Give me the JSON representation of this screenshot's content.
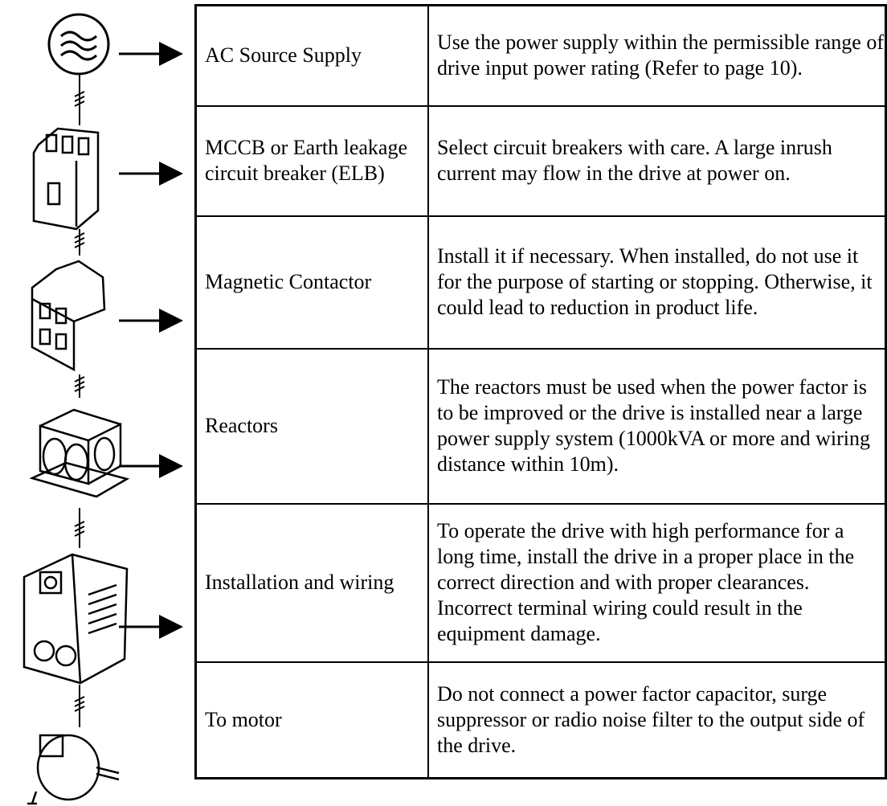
{
  "table": {
    "rows": [
      {
        "component": "AC Source Supply",
        "description": "Use the power supply within the permissible range of drive input power rating (Refer to page 10)."
      },
      {
        "component": "MCCB or Earth leakage circuit breaker (ELB)",
        "description": "Select circuit breakers with care. A large inrush current may flow in the drive at power on."
      },
      {
        "component": "Magnetic Contactor",
        "description": "Install it if necessary. When installed, do not use it for the purpose of starting or stopping. Otherwise, it could lead to reduction in product life."
      },
      {
        "component": "Reactors",
        "description": "The reactors must be used when the power factor is to be improved or the drive is installed near a large power supply system (1000kVA or more and wiring distance within 10m)."
      },
      {
        "component": "Installation and wiring",
        "description": "To operate the drive with high performance for a long time, install the drive in a proper place in the correct direction and with proper clearances. Incorrect terminal wiring could result in the equipment damage."
      },
      {
        "component": "To motor",
        "description": "Do not connect a power factor capacitor, surge suppressor or radio noise filter to the output side of the drive."
      }
    ]
  }
}
